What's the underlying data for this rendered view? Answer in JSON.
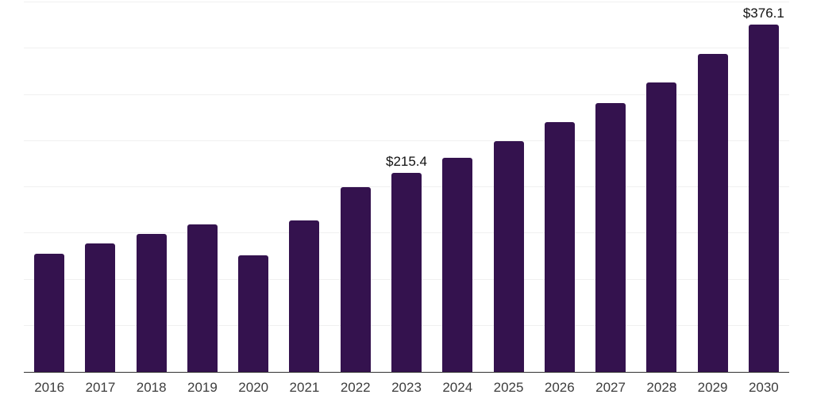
{
  "chart_data": {
    "type": "bar",
    "title": "",
    "xlabel": "",
    "ylabel": "",
    "categories": [
      "2016",
      "2017",
      "2018",
      "2019",
      "2020",
      "2021",
      "2022",
      "2023",
      "2024",
      "2025",
      "2026",
      "2027",
      "2028",
      "2029",
      "2030"
    ],
    "values": [
      128,
      139,
      149,
      160,
      126,
      164,
      200,
      215.4,
      232,
      250,
      270,
      291,
      313,
      344,
      376.1
    ],
    "bar_labels": [
      null,
      null,
      null,
      null,
      null,
      null,
      null,
      "$215.4",
      null,
      null,
      null,
      null,
      null,
      null,
      "$376.1"
    ],
    "ylim": [
      0,
      400
    ],
    "gridline_step": 50,
    "grid": "horizontal",
    "legend": "none",
    "y_axis_tick_labels": "none",
    "bar_color": "#34124e",
    "gridline_color": "#f0f0f0",
    "axis_line_color": "#333333",
    "tick_label_color": "#3d3d3d",
    "value_label_color": "#111111"
  }
}
